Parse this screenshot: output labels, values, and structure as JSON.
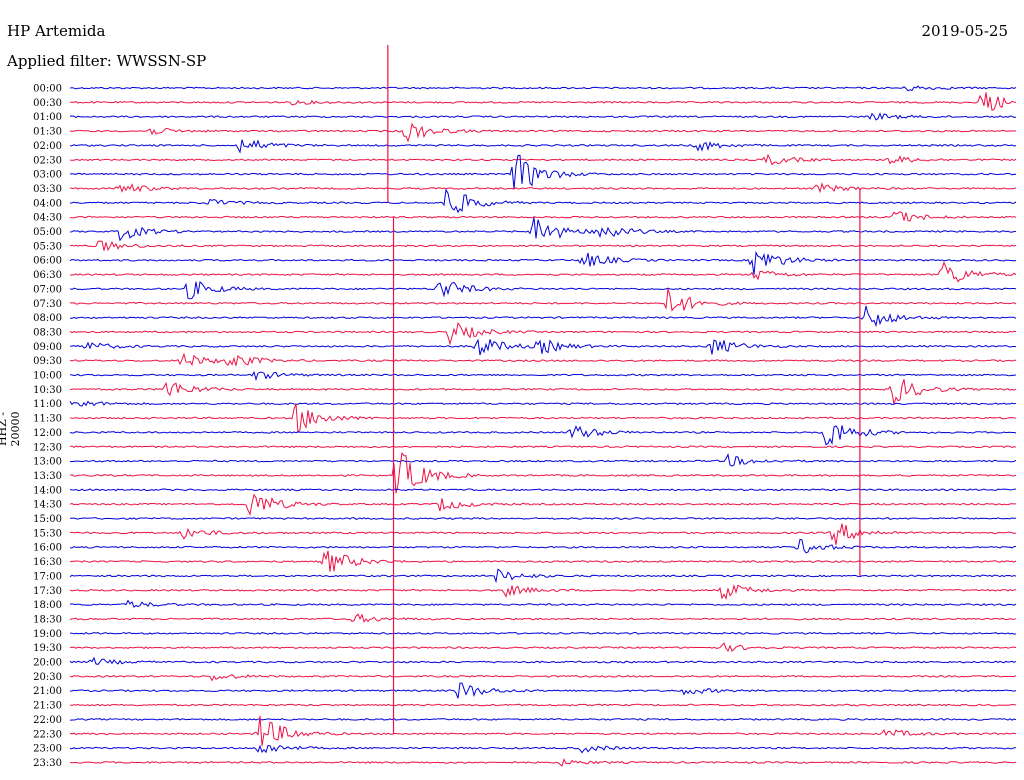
{
  "header": {
    "station": "HP Artemida",
    "date": "2019-05-25",
    "filter": "Applied filter: WWSSN-SP"
  },
  "chart_data": {
    "type": "line",
    "ylabel": "HHZ - 20000",
    "row_labels": [
      "00:00",
      "00:30",
      "01:00",
      "01:30",
      "02:00",
      "02:30",
      "03:00",
      "03:30",
      "04:00",
      "04:30",
      "05:00",
      "05:30",
      "06:00",
      "06:30",
      "07:00",
      "07:30",
      "08:00",
      "08:30",
      "09:00",
      "09:30",
      "10:00",
      "10:30",
      "11:00",
      "11:30",
      "12:00",
      "12:30",
      "13:00",
      "13:30",
      "14:00",
      "14:30",
      "15:00",
      "15:30",
      "16:00",
      "16:30",
      "17:00",
      "17:30",
      "18:00",
      "18:30",
      "19:00",
      "19:30",
      "20:00",
      "20:30",
      "21:00",
      "21:30",
      "22:00",
      "22:30",
      "23:00",
      "23:30"
    ],
    "row_colors": [
      "#0000dd",
      "#ee1144"
    ],
    "events": [
      {
        "row": 0,
        "x": 0.885,
        "amp": 3
      },
      {
        "row": 1,
        "x": 0.235,
        "amp": 2
      },
      {
        "row": 1,
        "x": 0.963,
        "amp": 13
      },
      {
        "row": 2,
        "x": 0.848,
        "amp": 4
      },
      {
        "row": 3,
        "x": 0.083,
        "amp": 4
      },
      {
        "row": 3,
        "x": 0.354,
        "amp": 12
      },
      {
        "row": 4,
        "x": 0.18,
        "amp": 9
      },
      {
        "row": 4,
        "x": 0.662,
        "amp": 6
      },
      {
        "row": 5,
        "x": 0.736,
        "amp": 6
      },
      {
        "row": 5,
        "x": 0.865,
        "amp": 5
      },
      {
        "row": 6,
        "x": 0.47,
        "amp": 24
      },
      {
        "row": 7,
        "x": 0.052,
        "amp": 6
      },
      {
        "row": 7,
        "x": 0.79,
        "amp": 5
      },
      {
        "row": 8,
        "x": 0.398,
        "amp": 18
      },
      {
        "row": 8,
        "x": 0.145,
        "amp": 4
      },
      {
        "row": 9,
        "x": 0.87,
        "amp": 8
      },
      {
        "row": 10,
        "x": 0.053,
        "amp": 9
      },
      {
        "row": 10,
        "x": 0.49,
        "amp": 18
      },
      {
        "row": 10,
        "x": 0.56,
        "amp": 10
      },
      {
        "row": 11,
        "x": 0.031,
        "amp": 6
      },
      {
        "row": 12,
        "x": 0.542,
        "amp": 9
      },
      {
        "row": 12,
        "x": 0.722,
        "amp": 16
      },
      {
        "row": 13,
        "x": 0.722,
        "amp": 6
      },
      {
        "row": 13,
        "x": 0.922,
        "amp": 15
      },
      {
        "row": 14,
        "x": 0.125,
        "amp": 11
      },
      {
        "row": 14,
        "x": 0.39,
        "amp": 12
      },
      {
        "row": 15,
        "x": 0.632,
        "amp": 15
      },
      {
        "row": 16,
        "x": 0.84,
        "amp": 14
      },
      {
        "row": 17,
        "x": 0.402,
        "amp": 12
      },
      {
        "row": 18,
        "x": 0.015,
        "amp": 5
      },
      {
        "row": 18,
        "x": 0.43,
        "amp": 12
      },
      {
        "row": 18,
        "x": 0.495,
        "amp": 8
      },
      {
        "row": 18,
        "x": 0.678,
        "amp": 10
      },
      {
        "row": 19,
        "x": 0.118,
        "amp": 8
      },
      {
        "row": 19,
        "x": 0.168,
        "amp": 8
      },
      {
        "row": 20,
        "x": 0.196,
        "amp": 5
      },
      {
        "row": 21,
        "x": 0.1,
        "amp": 11
      },
      {
        "row": 21,
        "x": 0.87,
        "amp": 16
      },
      {
        "row": 22,
        "x": 0.0,
        "amp": 5
      },
      {
        "row": 23,
        "x": 0.238,
        "amp": 16
      },
      {
        "row": 24,
        "x": 0.8,
        "amp": 18
      },
      {
        "row": 24,
        "x": 0.53,
        "amp": 9
      },
      {
        "row": 26,
        "x": 0.695,
        "amp": 6
      },
      {
        "row": 27,
        "x": 0.345,
        "amp": 30
      },
      {
        "row": 29,
        "x": 0.19,
        "amp": 16
      },
      {
        "row": 29,
        "x": 0.39,
        "amp": 7
      },
      {
        "row": 31,
        "x": 0.12,
        "amp": 6
      },
      {
        "row": 31,
        "x": 0.807,
        "amp": 13
      },
      {
        "row": 32,
        "x": 0.77,
        "amp": 8
      },
      {
        "row": 33,
        "x": 0.27,
        "amp": 15
      },
      {
        "row": 34,
        "x": 0.45,
        "amp": 7
      },
      {
        "row": 35,
        "x": 0.46,
        "amp": 6
      },
      {
        "row": 35,
        "x": 0.69,
        "amp": 9
      },
      {
        "row": 36,
        "x": 0.06,
        "amp": 4
      },
      {
        "row": 37,
        "x": 0.3,
        "amp": 5
      },
      {
        "row": 39,
        "x": 0.69,
        "amp": 4
      },
      {
        "row": 40,
        "x": 0.022,
        "amp": 4
      },
      {
        "row": 41,
        "x": 0.15,
        "amp": 4
      },
      {
        "row": 42,
        "x": 0.41,
        "amp": 10
      },
      {
        "row": 42,
        "x": 0.65,
        "amp": 4
      },
      {
        "row": 45,
        "x": 0.2,
        "amp": 20
      },
      {
        "row": 45,
        "x": 0.862,
        "amp": 5
      },
      {
        "row": 46,
        "x": 0.2,
        "amp": 7
      },
      {
        "row": 46,
        "x": 0.54,
        "amp": 4
      },
      {
        "row": 47,
        "x": 0.518,
        "amp": 3
      }
    ],
    "spikes": [
      {
        "x": 0.336,
        "y_top_row": -3,
        "y_bottom_row": 8
      },
      {
        "x": 0.342,
        "y_top_row": 9,
        "y_bottom_row": 45
      },
      {
        "x": 0.835,
        "y_top_row": 7,
        "y_bottom_row": 34
      }
    ]
  }
}
